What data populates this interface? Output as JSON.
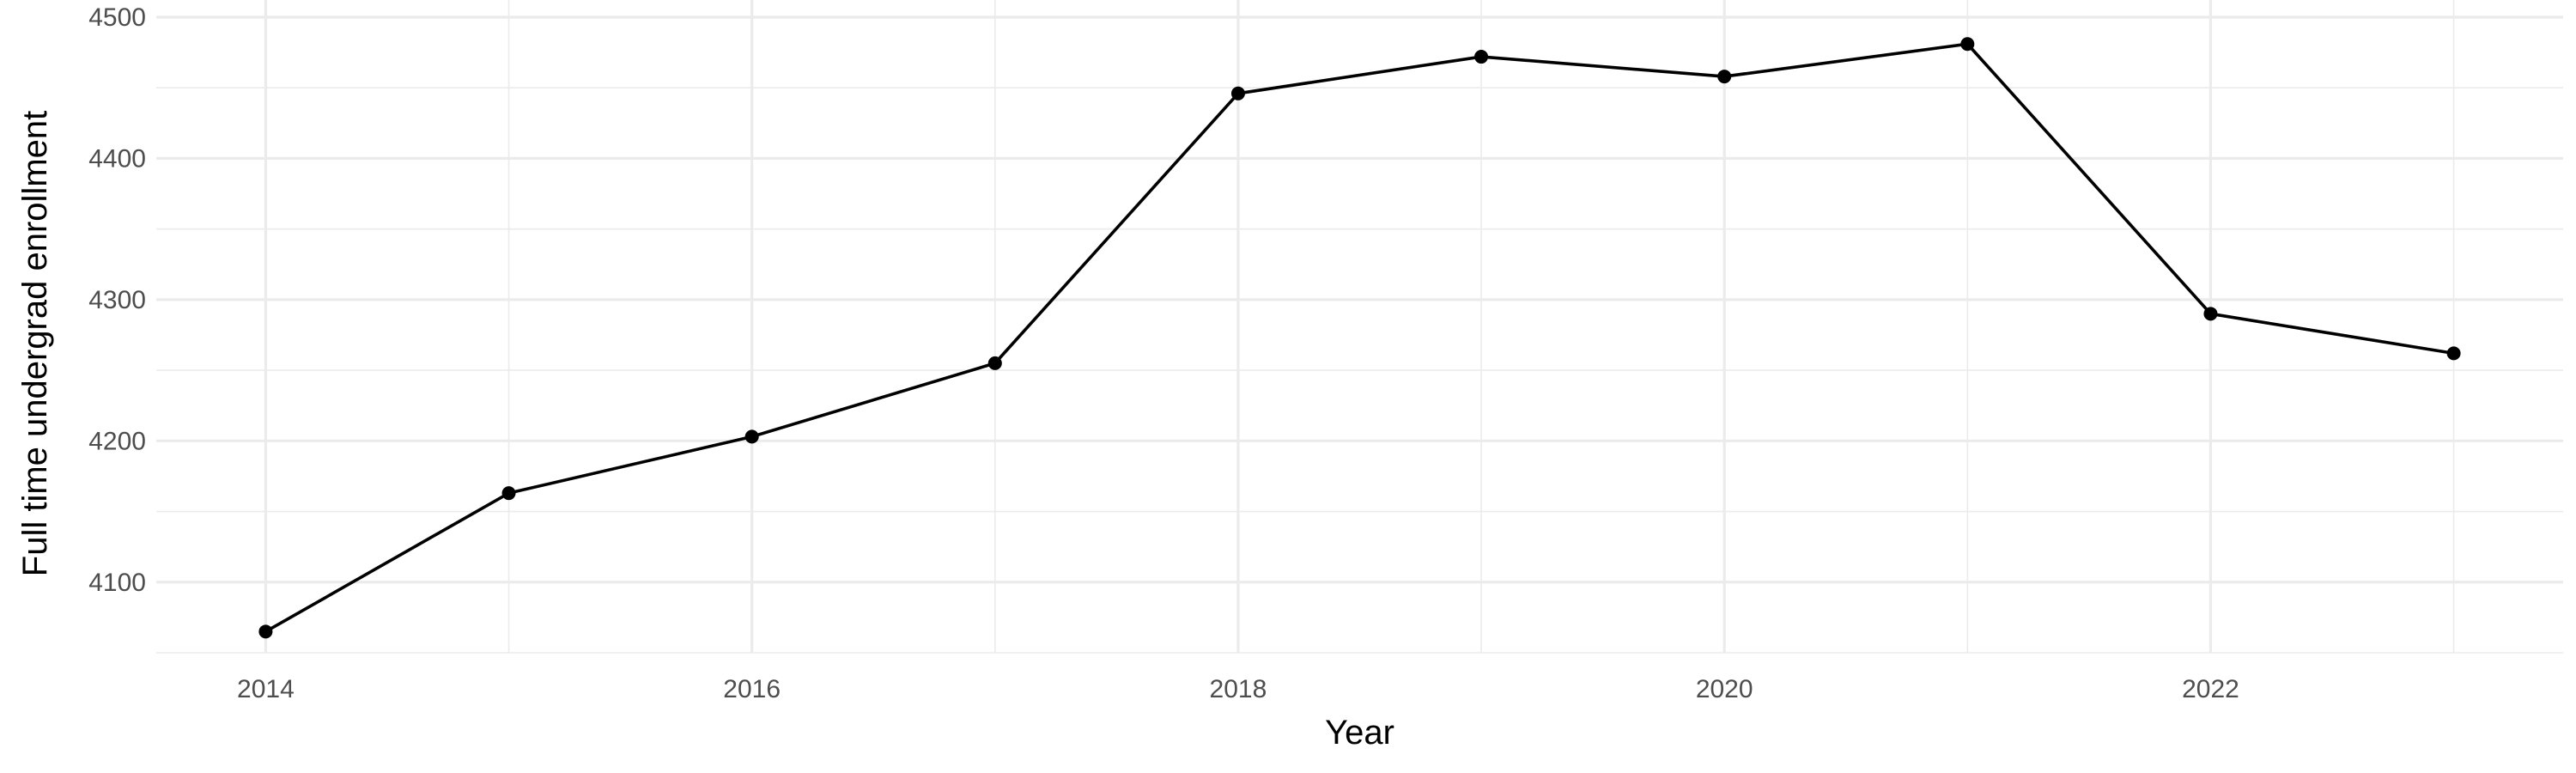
{
  "chart_data": {
    "type": "line",
    "title": "",
    "xlabel": "Year",
    "ylabel": "Full time undergrad enrollment",
    "x": [
      2014,
      2015,
      2016,
      2017,
      2018,
      2019,
      2020,
      2021,
      2022,
      2023
    ],
    "series": [
      {
        "values": [
          4065,
          4163,
          4203,
          4255,
          4446,
          4472,
          4458,
          4481,
          4290,
          4262
        ]
      }
    ],
    "xlim": [
      2013.55,
      2023.45
    ],
    "ylim": [
      4050,
      4500
    ],
    "x_ticks": [
      2014,
      2016,
      2018,
      2020,
      2022
    ],
    "x_tick_labels": [
      "2014",
      "2016",
      "2018",
      "2020",
      "2022"
    ],
    "y_ticks": [
      4100,
      4200,
      4300,
      4400,
      4500
    ],
    "y_tick_labels": [
      "4100",
      "4200",
      "4300",
      "4400",
      "4500"
    ],
    "grid": true,
    "legend": "none",
    "line_color": "#000000",
    "grid_color": "#ebebeb",
    "tick_label_color": "#4d4d4d"
  }
}
